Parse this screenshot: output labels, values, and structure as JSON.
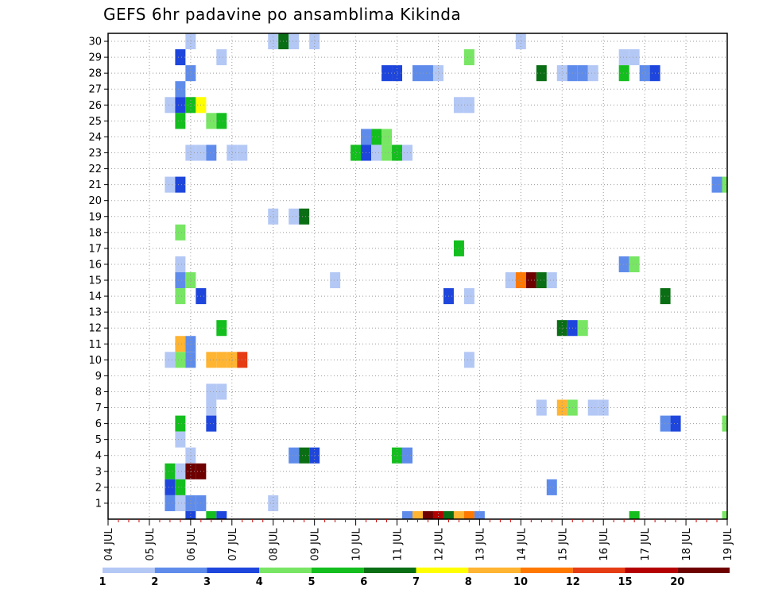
{
  "chart_data": {
    "type": "heatmap",
    "title": "GEFS 6hr padavine po ansamblima Kikinda",
    "x_tick_labels": [
      "04 JUL",
      "05 JUL",
      "06 JUL",
      "07 JUL",
      "08 JUL",
      "09 JUL",
      "10 JUL",
      "11 JUL",
      "12 JUL",
      "13 JUL",
      "14 JUL",
      "15 JUL",
      "16 JUL",
      "17 JUL",
      "18 JUL",
      "19 JUL"
    ],
    "y_tick_labels": [
      "1",
      "2",
      "3",
      "4",
      "5",
      "6",
      "7",
      "8",
      "9",
      "10",
      "11",
      "12",
      "13",
      "14",
      "15",
      "16",
      "17",
      "18",
      "19",
      "20",
      "21",
      "22",
      "23",
      "24",
      "25",
      "26",
      "27",
      "28",
      "29",
      "30"
    ],
    "x_range_steps": [
      0,
      60
    ],
    "y_range_members": [
      0,
      30
    ],
    "grid": true,
    "legend": {
      "placement": "bottom",
      "labels": [
        "1",
        "2",
        "3",
        "4",
        "5",
        "6",
        "7",
        "8",
        "10",
        "12",
        "15",
        "20"
      ],
      "colors": [
        "#b4c8f5",
        "#5f8ceb",
        "#1e46dc",
        "#78e664",
        "#14be1e",
        "#0a6e14",
        "#ffff00",
        "#ffb432",
        "#ff7800",
        "#e63c14",
        "#b40000",
        "#6e0000"
      ]
    },
    "value_levels": [
      1.5,
      2.5,
      3.5,
      4.5,
      5.5,
      6.5,
      7.5,
      9,
      11,
      13.5,
      17.5,
      22
    ],
    "cells": [
      {
        "x": 8,
        "y": 30,
        "v": 1
      },
      {
        "x": 8,
        "y": 0,
        "v": 3
      },
      {
        "x": 10,
        "y": 0,
        "v": 5
      },
      {
        "x": 11,
        "y": 0,
        "v": 3
      },
      {
        "x": 8,
        "y": 28,
        "v": 2
      },
      {
        "x": 7,
        "y": 29,
        "v": 3
      },
      {
        "x": 7,
        "y": 27,
        "v": 2
      },
      {
        "x": 6,
        "y": 26,
        "v": 1
      },
      {
        "x": 7,
        "y": 26,
        "v": 3
      },
      {
        "x": 8,
        "y": 26,
        "v": 5
      },
      {
        "x": 9,
        "y": 26,
        "v": 7
      },
      {
        "x": 7,
        "y": 25,
        "v": 5
      },
      {
        "x": 10,
        "y": 25,
        "v": 4
      },
      {
        "x": 11,
        "y": 25,
        "v": 5
      },
      {
        "x": 8,
        "y": 23,
        "v": 1
      },
      {
        "x": 9,
        "y": 23,
        "v": 1
      },
      {
        "x": 10,
        "y": 23,
        "v": 2
      },
      {
        "x": 12,
        "y": 23,
        "v": 1
      },
      {
        "x": 13,
        "y": 23,
        "v": 1
      },
      {
        "x": 11,
        "y": 29,
        "v": 1
      },
      {
        "x": 6,
        "y": 21,
        "v": 1
      },
      {
        "x": 7,
        "y": 21,
        "v": 3
      },
      {
        "x": 7,
        "y": 18,
        "v": 4
      },
      {
        "x": 7,
        "y": 16,
        "v": 1
      },
      {
        "x": 7,
        "y": 15,
        "v": 2
      },
      {
        "x": 8,
        "y": 15,
        "v": 4
      },
      {
        "x": 7,
        "y": 14,
        "v": 4
      },
      {
        "x": 9,
        "y": 14,
        "v": 3
      },
      {
        "x": 11,
        "y": 12,
        "v": 5
      },
      {
        "x": 7,
        "y": 11,
        "v": 8
      },
      {
        "x": 8,
        "y": 11,
        "v": 2
      },
      {
        "x": 6,
        "y": 10,
        "v": 1
      },
      {
        "x": 7,
        "y": 10,
        "v": 4
      },
      {
        "x": 8,
        "y": 10,
        "v": 2
      },
      {
        "x": 10,
        "y": 10,
        "v": 8
      },
      {
        "x": 11,
        "y": 10,
        "v": 8
      },
      {
        "x": 12,
        "y": 10,
        "v": 8
      },
      {
        "x": 13,
        "y": 10,
        "v": 12
      },
      {
        "x": 10,
        "y": 8,
        "v": 1
      },
      {
        "x": 11,
        "y": 8,
        "v": 1
      },
      {
        "x": 10,
        "y": 7,
        "v": 1
      },
      {
        "x": 7,
        "y": 6,
        "v": 5
      },
      {
        "x": 10,
        "y": 6,
        "v": 3
      },
      {
        "x": 7,
        "y": 5,
        "v": 1
      },
      {
        "x": 8,
        "y": 4,
        "v": 1
      },
      {
        "x": 6,
        "y": 3,
        "v": 5
      },
      {
        "x": 7,
        "y": 3,
        "v": 1
      },
      {
        "x": 8,
        "y": 3,
        "v": 20
      },
      {
        "x": 9,
        "y": 3,
        "v": 20
      },
      {
        "x": 6,
        "y": 2,
        "v": 3
      },
      {
        "x": 7,
        "y": 2,
        "v": 5
      },
      {
        "x": 6,
        "y": 1,
        "v": 2
      },
      {
        "x": 7,
        "y": 1,
        "v": 1
      },
      {
        "x": 8,
        "y": 1,
        "v": 2
      },
      {
        "x": 9,
        "y": 1,
        "v": 2
      },
      {
        "x": 16,
        "y": 30,
        "v": 1
      },
      {
        "x": 17,
        "y": 30,
        "v": 6
      },
      {
        "x": 18,
        "y": 30,
        "v": 1
      },
      {
        "x": 20,
        "y": 30,
        "v": 1
      },
      {
        "x": 16,
        "y": 19,
        "v": 1
      },
      {
        "x": 18,
        "y": 19,
        "v": 1
      },
      {
        "x": 19,
        "y": 19,
        "v": 6
      },
      {
        "x": 16,
        "y": 1,
        "v": 1
      },
      {
        "x": 18,
        "y": 4,
        "v": 2
      },
      {
        "x": 19,
        "y": 4,
        "v": 6
      },
      {
        "x": 20,
        "y": 4,
        "v": 3
      },
      {
        "x": 22,
        "y": 15,
        "v": 1
      },
      {
        "x": 27,
        "y": 28,
        "v": 3
      },
      {
        "x": 28,
        "y": 28,
        "v": 3
      },
      {
        "x": 30,
        "y": 28,
        "v": 2
      },
      {
        "x": 31,
        "y": 28,
        "v": 2
      },
      {
        "x": 32,
        "y": 28,
        "v": 1
      },
      {
        "x": 25,
        "y": 24,
        "v": 2
      },
      {
        "x": 26,
        "y": 24,
        "v": 5
      },
      {
        "x": 27,
        "y": 24,
        "v": 4
      },
      {
        "x": 24,
        "y": 23,
        "v": 5
      },
      {
        "x": 25,
        "y": 23,
        "v": 3
      },
      {
        "x": 26,
        "y": 23,
        "v": 1
      },
      {
        "x": 27,
        "y": 23,
        "v": 4
      },
      {
        "x": 28,
        "y": 23,
        "v": 5
      },
      {
        "x": 29,
        "y": 23,
        "v": 1
      },
      {
        "x": 28,
        "y": 4,
        "v": 5
      },
      {
        "x": 29,
        "y": 4,
        "v": 2
      },
      {
        "x": 29,
        "y": 0,
        "v": 2
      },
      {
        "x": 30,
        "y": 0,
        "v": 8
      },
      {
        "x": 31,
        "y": 0,
        "v": 20
      },
      {
        "x": 32,
        "y": 0,
        "v": 15
      },
      {
        "x": 33,
        "y": 0,
        "v": 6
      },
      {
        "x": 34,
        "y": 0,
        "v": 8
      },
      {
        "x": 35,
        "y": 0,
        "v": 10
      },
      {
        "x": 36,
        "y": 0,
        "v": 2
      },
      {
        "x": 35,
        "y": 29,
        "v": 4
      },
      {
        "x": 34,
        "y": 26,
        "v": 1
      },
      {
        "x": 35,
        "y": 26,
        "v": 1
      },
      {
        "x": 34,
        "y": 17,
        "v": 5
      },
      {
        "x": 33,
        "y": 14,
        "v": 3
      },
      {
        "x": 35,
        "y": 14,
        "v": 1
      },
      {
        "x": 35,
        "y": 10,
        "v": 1
      },
      {
        "x": 40,
        "y": 30,
        "v": 1
      },
      {
        "x": 42,
        "y": 28,
        "v": 6
      },
      {
        "x": 44,
        "y": 28,
        "v": 1
      },
      {
        "x": 45,
        "y": 28,
        "v": 2
      },
      {
        "x": 46,
        "y": 28,
        "v": 2
      },
      {
        "x": 47,
        "y": 28,
        "v": 1
      },
      {
        "x": 39,
        "y": 15,
        "v": 1
      },
      {
        "x": 40,
        "y": 15,
        "v": 10
      },
      {
        "x": 41,
        "y": 15,
        "v": 20
      },
      {
        "x": 42,
        "y": 15,
        "v": 6
      },
      {
        "x": 43,
        "y": 15,
        "v": 1
      },
      {
        "x": 44,
        "y": 12,
        "v": 6
      },
      {
        "x": 45,
        "y": 12,
        "v": 3
      },
      {
        "x": 46,
        "y": 12,
        "v": 4
      },
      {
        "x": 43,
        "y": 2,
        "v": 2
      },
      {
        "x": 42,
        "y": 7,
        "v": 1
      },
      {
        "x": 44,
        "y": 7,
        "v": 8
      },
      {
        "x": 45,
        "y": 7,
        "v": 4
      },
      {
        "x": 47,
        "y": 7,
        "v": 1
      },
      {
        "x": 48,
        "y": 7,
        "v": 1
      },
      {
        "x": 50,
        "y": 29,
        "v": 1
      },
      {
        "x": 51,
        "y": 29,
        "v": 1
      },
      {
        "x": 50,
        "y": 28,
        "v": 5
      },
      {
        "x": 52,
        "y": 28,
        "v": 2
      },
      {
        "x": 53,
        "y": 28,
        "v": 3
      },
      {
        "x": 50,
        "y": 16,
        "v": 2
      },
      {
        "x": 51,
        "y": 16,
        "v": 4
      },
      {
        "x": 54,
        "y": 14,
        "v": 6
      },
      {
        "x": 54,
        "y": 6,
        "v": 2
      },
      {
        "x": 55,
        "y": 6,
        "v": 3
      },
      {
        "x": 51,
        "y": 0,
        "v": 5
      },
      {
        "x": 59,
        "y": 21,
        "v": 2
      },
      {
        "x": 60,
        "y": 21,
        "v": 4
      },
      {
        "x": 60,
        "y": 6,
        "v": 4
      },
      {
        "x": 60,
        "y": 0,
        "v": 4
      }
    ]
  }
}
